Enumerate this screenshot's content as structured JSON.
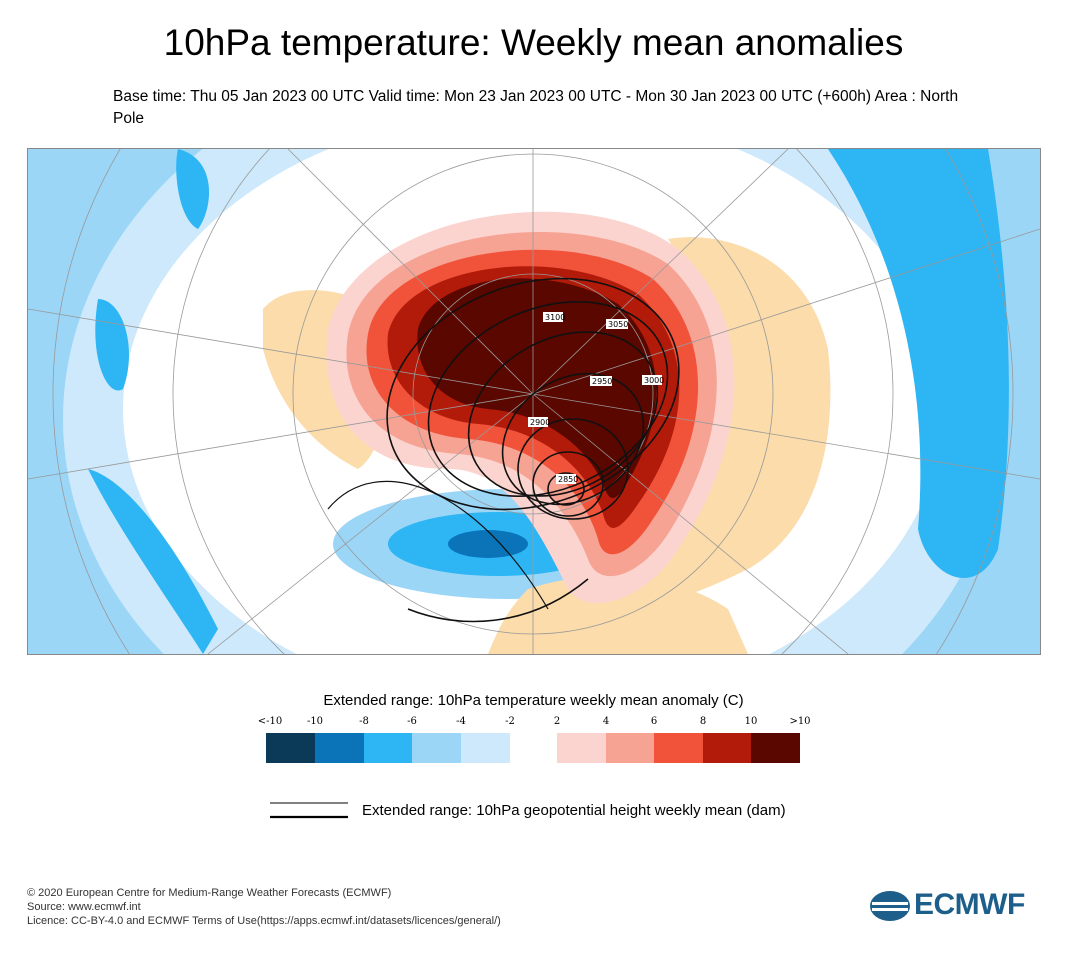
{
  "title": "10hPa temperature: Weekly mean anomalies",
  "subtitle": "Base time: Thu 05 Jan 2023 00 UTC Valid time: Mon 23 Jan 2023 00 UTC - Mon 30 Jan 2023 00 UTC (+600h) Area : North Pole",
  "map": {
    "contour_labels": [
      "3100",
      "3050",
      "3000",
      "2950",
      "2900",
      "2850"
    ]
  },
  "legend": {
    "title": "Extended range: 10hPa temperature weekly mean anomaly (C)",
    "ticks": [
      "<-10",
      "-10",
      "-8",
      "-6",
      "-4",
      "-2",
      "2",
      "4",
      "6",
      "8",
      "10",
      ">10"
    ],
    "colors": {
      "cold": [
        "#0a3a57",
        "#0b74b8",
        "#2db5f4",
        "#9bd6f7",
        "#cde9fb"
      ],
      "warm": [
        "#fcd4cf",
        "#f6a394",
        "#f1533a",
        "#b21a0a",
        "#5a0700"
      ]
    },
    "line_label": "Extended range: 10hPa geopotential height weekly mean (dam)"
  },
  "footer": {
    "line1": "© 2020 European Centre for Medium-Range Weather Forecasts (ECMWF)",
    "line2": "Source: www.ecmwf.int",
    "line3": "Licence: CC-BY-4.0 and ECMWF Terms of Use(https://apps.ecmwf.int/datasets/licences/general/)"
  },
  "logo_text": "ECMWF"
}
